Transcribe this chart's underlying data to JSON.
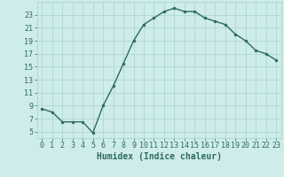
{
  "xlabel": "Humidex (Indice chaleur)",
  "x_values": [
    0,
    1,
    2,
    3,
    4,
    5,
    6,
    7,
    8,
    9,
    10,
    11,
    12,
    13,
    14,
    15,
    16,
    17,
    18,
    19,
    20,
    21,
    22,
    23
  ],
  "y_values": [
    8.5,
    8.0,
    6.5,
    6.5,
    6.5,
    4.8,
    9.0,
    12.0,
    15.5,
    19.0,
    21.5,
    22.5,
    23.5,
    24.0,
    23.5,
    23.5,
    22.5,
    22.0,
    21.5,
    20.0,
    19.0,
    17.5,
    17.0,
    16.0
  ],
  "ylim": [
    4,
    25
  ],
  "xlim": [
    -0.5,
    23.5
  ],
  "yticks": [
    5,
    7,
    9,
    11,
    13,
    15,
    17,
    19,
    21,
    23
  ],
  "xticks": [
    0,
    1,
    2,
    3,
    4,
    5,
    6,
    7,
    8,
    9,
    10,
    11,
    12,
    13,
    14,
    15,
    16,
    17,
    18,
    19,
    20,
    21,
    22,
    23
  ],
  "line_color": "#2e6b5e",
  "marker_color": "#2e6b5e",
  "bg_color": "#ceecea",
  "grid_color": "#afd8d2",
  "tick_label_color": "#2e6b5e",
  "xlabel_color": "#2e6b5e",
  "font_size_tick": 6.0,
  "font_size_label": 7.0
}
